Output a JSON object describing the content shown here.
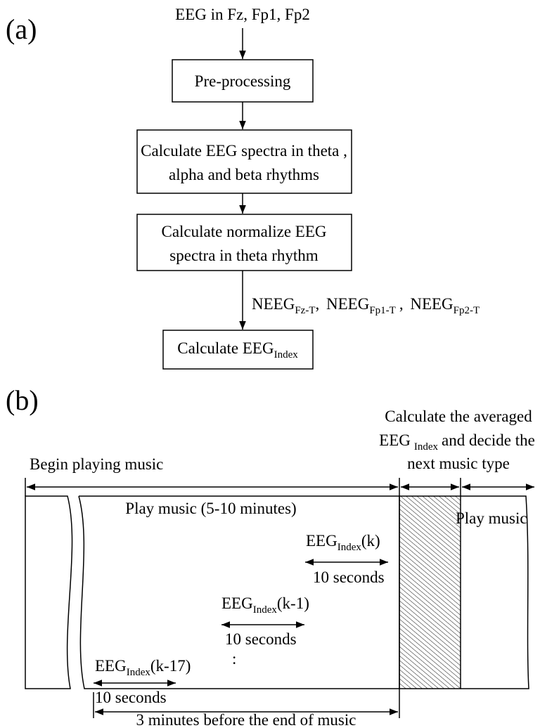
{
  "panel_a": {
    "label": "(a)",
    "input": "EEG in Fz, Fp1, Fp2",
    "steps": [
      {
        "lines": [
          "Pre-processing"
        ]
      },
      {
        "lines": [
          "Calculate EEG spectra in theta ,",
          "alpha and beta rhythms"
        ]
      },
      {
        "lines": [
          "Calculate normalize EEG",
          "spectra in theta rhythm"
        ]
      }
    ],
    "outputs": [
      {
        "text": "NEEG",
        "sub": "Fz-T",
        "tail": ","
      },
      {
        "text": "NEEG",
        "sub": "Fp1-T",
        "tail": ","
      },
      {
        "text": "NEEG",
        "sub": "Fp2-T"
      }
    ],
    "final_step": {
      "text": "Calculate EEG",
      "sub": "Index"
    }
  },
  "panel_b": {
    "label": "(b)",
    "note": {
      "line1": "Calculate the averaged",
      "line2": {
        "text": "EEG",
        "sub": "Index",
        "tail": "and decide the"
      },
      "line3": "next music type"
    },
    "begin": "Begin playing music",
    "play_span": "Play music (5-10 minutes)",
    "play_next": "Play music",
    "windows": [
      {
        "text": "EEG",
        "sub": "Index",
        "tail": "(k)",
        "duration": "10 seconds"
      },
      {
        "text": "EEG",
        "sub": "Index",
        "tail": "(k-1)",
        "duration": "10 seconds"
      },
      {
        "text": "EEG",
        "sub": "Index",
        "tail": "(k-17)",
        "duration": "10 seconds"
      }
    ],
    "ellipsis": ":",
    "span_label": "3 minutes before the end of music"
  }
}
